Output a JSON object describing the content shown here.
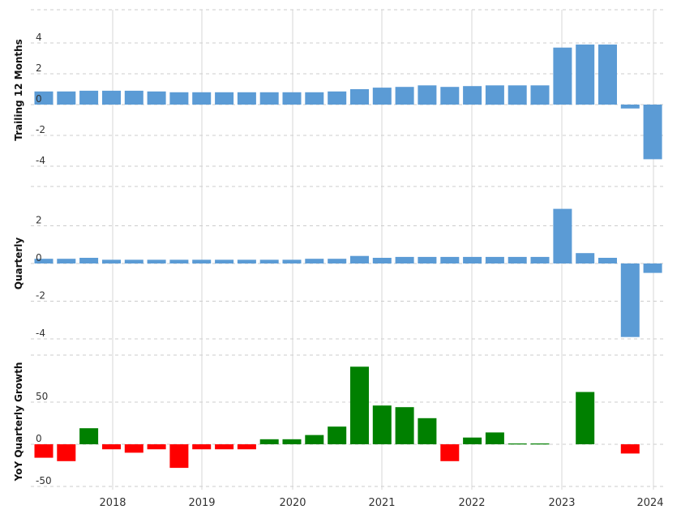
{
  "chart_data": [
    {
      "type": "bar",
      "ylabel": "Trailing 12 Months",
      "ylim": [
        -4,
        5
      ],
      "yticks": [
        -4,
        -2,
        0,
        2,
        4
      ],
      "grid": true,
      "xticks": [
        "2018",
        "2019",
        "2020",
        "2021",
        "2022",
        "2023",
        "2024"
      ],
      "colors": {
        "positive": "#5b9bd5",
        "negative": "#5b9bd5"
      },
      "values": [
        0.85,
        0.85,
        0.9,
        0.9,
        0.9,
        0.85,
        0.8,
        0.8,
        0.8,
        0.8,
        0.8,
        0.8,
        0.8,
        0.85,
        1.0,
        1.1,
        1.15,
        1.25,
        1.15,
        1.2,
        1.25,
        1.25,
        1.25,
        3.7,
        3.9,
        3.9,
        -0.25,
        -3.55
      ]
    },
    {
      "type": "bar",
      "ylabel": "Quarterly",
      "ylim": [
        -4,
        4
      ],
      "yticks": [
        -4,
        -2,
        0,
        2
      ],
      "grid": true,
      "xticks": [
        "2018",
        "2019",
        "2020",
        "2021",
        "2022",
        "2023",
        "2024"
      ],
      "colors": {
        "positive": "#5b9bd5",
        "negative": "#5b9bd5"
      },
      "values": [
        0.25,
        0.25,
        0.3,
        0.2,
        0.2,
        0.2,
        0.2,
        0.2,
        0.2,
        0.2,
        0.2,
        0.2,
        0.25,
        0.25,
        0.4,
        0.3,
        0.35,
        0.35,
        0.35,
        0.35,
        0.35,
        0.35,
        0.35,
        2.9,
        0.55,
        0.3,
        -3.9,
        -0.5
      ]
    },
    {
      "type": "bar",
      "ylabel": "YoY Quarterly Growth",
      "ylim": [
        -50,
        100
      ],
      "yticks": [
        -50,
        0,
        50
      ],
      "grid": true,
      "xticks": [
        "2018",
        "2019",
        "2020",
        "2021",
        "2022",
        "2023",
        "2024"
      ],
      "colors": {
        "positive": "#008000",
        "negative": "#ff0000"
      },
      "values": [
        -16,
        -20,
        19,
        -6,
        -10,
        -6,
        -28,
        -6,
        -6,
        -6,
        6,
        6,
        11,
        21,
        92,
        46,
        44,
        31,
        -20,
        8,
        14,
        1,
        1,
        0,
        62,
        0,
        -11,
        0
      ]
    }
  ]
}
